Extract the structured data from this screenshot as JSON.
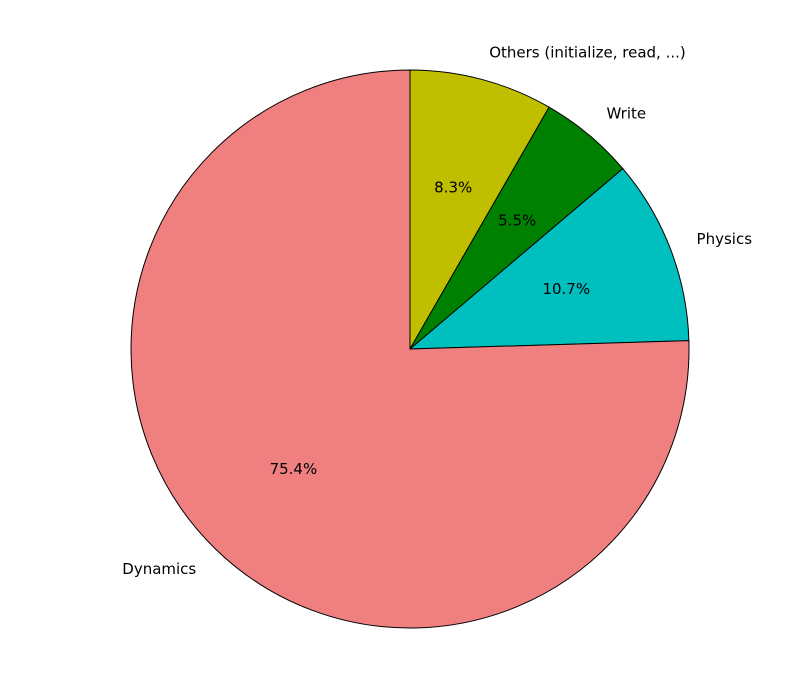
{
  "chart_data": {
    "type": "pie",
    "title": "",
    "start_angle_deg": 90,
    "direction": "clockwise",
    "slices": [
      {
        "label": "Others (initialize, read, ...)",
        "value": 8.3,
        "pct_label": "8.3%",
        "color": "#bfbf00"
      },
      {
        "label": "Write",
        "value": 5.5,
        "pct_label": "5.5%",
        "color": "#008000"
      },
      {
        "label": "Physics",
        "value": 10.7,
        "pct_label": "10.7%",
        "color": "#00bfbf"
      },
      {
        "label": "Dynamics",
        "value": 75.4,
        "pct_label": "75.4%",
        "color": "#f08080"
      }
    ]
  }
}
